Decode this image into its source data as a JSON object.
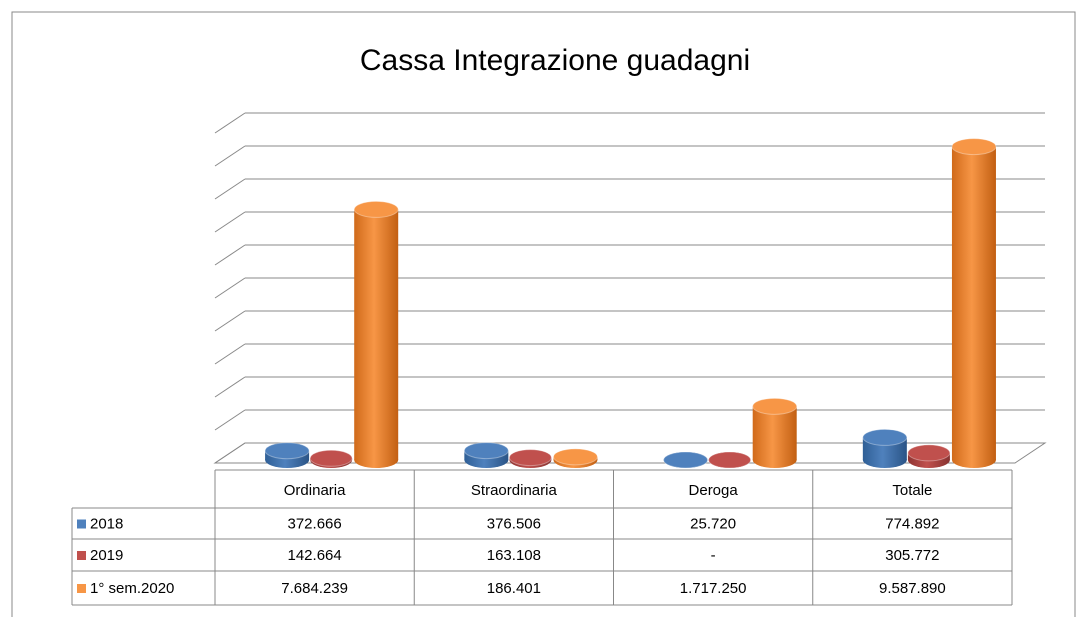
{
  "chart_data": {
    "type": "bar",
    "title": "Cassa Integrazione guadagni",
    "categories": [
      "Ordinaria",
      "Straordinaria",
      "Deroga",
      "Totale"
    ],
    "series": [
      {
        "name": "2018",
        "color": "#4f81bd",
        "values": [
          372666,
          376506,
          25720,
          774892
        ],
        "value_labels": [
          "372.666",
          "376.506",
          "25.720",
          "774.892"
        ]
      },
      {
        "name": "2019",
        "color": "#c0504d",
        "values": [
          142664,
          163108,
          0,
          305772
        ],
        "value_labels": [
          "142.664",
          "163.108",
          "-",
          "305.772"
        ]
      },
      {
        "name": "1° sem.2020",
        "color": "#f79646",
        "values": [
          7684239,
          186401,
          1717250,
          9587890
        ],
        "value_labels": [
          "7.684.239",
          "186.401",
          "1.717.250",
          "9.587.890"
        ]
      }
    ],
    "ylim": [
      0,
      10000000
    ],
    "yticks": [
      0,
      1000000,
      2000000,
      3000000,
      4000000,
      5000000,
      6000000,
      7000000,
      8000000,
      9000000,
      10000000
    ],
    "grid": true
  }
}
